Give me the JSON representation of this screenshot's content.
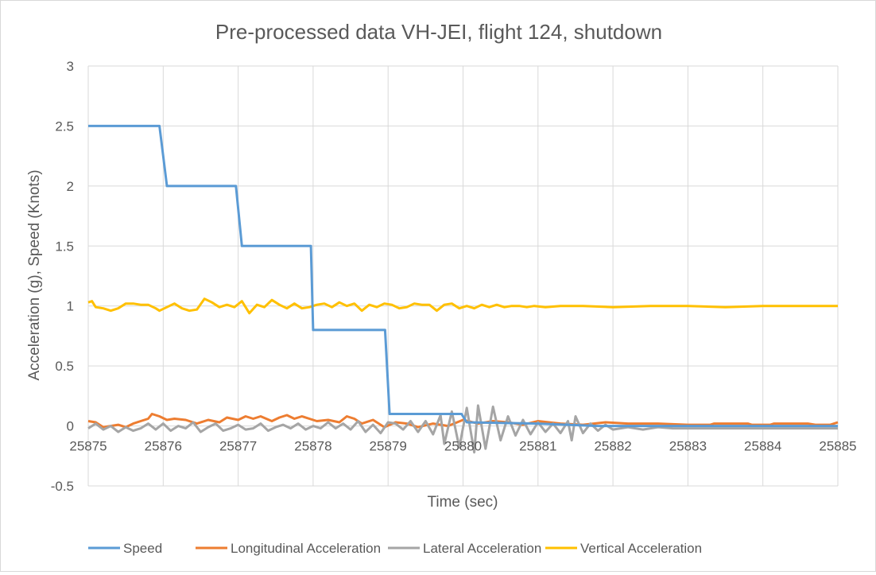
{
  "chart_data": {
    "type": "line",
    "title": "Pre-processed data VH-JEI, flight 124, shutdown",
    "xlabel": "Time (sec)",
    "ylabel": "Acceleration (g), Speed (Knots)",
    "xlim": [
      25875,
      25885
    ],
    "ylim": [
      -0.5,
      3
    ],
    "x_ticks": [
      "25875",
      "25876",
      "25877",
      "25878",
      "25879",
      "25880",
      "25881",
      "25882",
      "25883",
      "25884",
      "25885"
    ],
    "y_ticks": [
      "-0.5",
      "0",
      "0.5",
      "1",
      "1.5",
      "2",
      "2.5",
      "3"
    ],
    "grid": "vertical-and-horizontal",
    "legend_position": "bottom",
    "series": [
      {
        "name": "Speed",
        "color": "#5b9bd5",
        "points": [
          [
            25875,
            2.5
          ],
          [
            25875.95,
            2.5
          ],
          [
            25876.05,
            2.0
          ],
          [
            25876.97,
            2.0
          ],
          [
            25877.05,
            1.5
          ],
          [
            25877.97,
            1.5
          ],
          [
            25878.0,
            0.8
          ],
          [
            25878.96,
            0.8
          ],
          [
            25879.02,
            0.1
          ],
          [
            25879.9,
            0.1
          ],
          [
            25879.98,
            0.1
          ],
          [
            25880.05,
            0.03
          ],
          [
            25881.0,
            0.02
          ],
          [
            25881.8,
            0.0
          ],
          [
            25885,
            0.0
          ]
        ]
      },
      {
        "name": "Longitudinal Acceleration",
        "color": "#ed7d31",
        "points": [
          [
            25875.0,
            0.04
          ],
          [
            25875.1,
            0.03
          ],
          [
            25875.2,
            -0.01
          ],
          [
            25875.3,
            0.0
          ],
          [
            25875.4,
            0.01
          ],
          [
            25875.5,
            -0.01
          ],
          [
            25875.6,
            0.02
          ],
          [
            25875.7,
            0.04
          ],
          [
            25875.8,
            0.06
          ],
          [
            25875.85,
            0.1
          ],
          [
            25875.95,
            0.08
          ],
          [
            25876.05,
            0.05
          ],
          [
            25876.15,
            0.06
          ],
          [
            25876.3,
            0.05
          ],
          [
            25876.45,
            0.02
          ],
          [
            25876.6,
            0.05
          ],
          [
            25876.75,
            0.03
          ],
          [
            25876.85,
            0.07
          ],
          [
            25877.0,
            0.05
          ],
          [
            25877.1,
            0.08
          ],
          [
            25877.2,
            0.06
          ],
          [
            25877.3,
            0.08
          ],
          [
            25877.45,
            0.04
          ],
          [
            25877.55,
            0.07
          ],
          [
            25877.65,
            0.09
          ],
          [
            25877.75,
            0.06
          ],
          [
            25877.85,
            0.08
          ],
          [
            25877.95,
            0.06
          ],
          [
            25878.05,
            0.04
          ],
          [
            25878.2,
            0.05
          ],
          [
            25878.35,
            0.03
          ],
          [
            25878.45,
            0.08
          ],
          [
            25878.55,
            0.06
          ],
          [
            25878.65,
            0.02
          ],
          [
            25878.8,
            0.05
          ],
          [
            25878.95,
            -0.01
          ],
          [
            25879.1,
            0.03
          ],
          [
            25879.25,
            0.02
          ],
          [
            25879.4,
            -0.01
          ],
          [
            25879.6,
            0.02
          ],
          [
            25879.8,
            0.0
          ],
          [
            25880.0,
            0.05
          ],
          [
            25880.2,
            0.02
          ],
          [
            25880.4,
            0.04
          ],
          [
            25880.6,
            0.03
          ],
          [
            25880.8,
            0.01
          ],
          [
            25881.0,
            0.04
          ],
          [
            25881.3,
            0.02
          ],
          [
            25881.6,
            0.01
          ],
          [
            25881.9,
            0.03
          ],
          [
            25882.2,
            0.02
          ],
          [
            25882.6,
            0.02
          ],
          [
            25883.0,
            0.01
          ],
          [
            25883.3,
            0.01
          ],
          [
            25883.35,
            0.02
          ],
          [
            25883.8,
            0.02
          ],
          [
            25883.85,
            0.01
          ],
          [
            25884.1,
            0.01
          ],
          [
            25884.15,
            0.02
          ],
          [
            25884.6,
            0.02
          ],
          [
            25884.7,
            0.01
          ],
          [
            25884.9,
            0.01
          ],
          [
            25885.0,
            0.03
          ]
        ]
      },
      {
        "name": "Lateral Acceleration",
        "color": "#a5a5a5",
        "points": [
          [
            25875.0,
            -0.02
          ],
          [
            25875.1,
            0.02
          ],
          [
            25875.2,
            -0.03
          ],
          [
            25875.3,
            0.0
          ],
          [
            25875.4,
            -0.05
          ],
          [
            25875.5,
            -0.01
          ],
          [
            25875.6,
            -0.04
          ],
          [
            25875.7,
            -0.02
          ],
          [
            25875.8,
            0.02
          ],
          [
            25875.9,
            -0.03
          ],
          [
            25876.0,
            0.02
          ],
          [
            25876.1,
            -0.04
          ],
          [
            25876.2,
            0.0
          ],
          [
            25876.3,
            -0.02
          ],
          [
            25876.4,
            0.03
          ],
          [
            25876.5,
            -0.05
          ],
          [
            25876.6,
            -0.01
          ],
          [
            25876.7,
            0.02
          ],
          [
            25876.8,
            -0.04
          ],
          [
            25876.9,
            -0.02
          ],
          [
            25877.0,
            0.01
          ],
          [
            25877.1,
            -0.03
          ],
          [
            25877.2,
            -0.02
          ],
          [
            25877.3,
            0.02
          ],
          [
            25877.4,
            -0.04
          ],
          [
            25877.5,
            -0.01
          ],
          [
            25877.6,
            0.01
          ],
          [
            25877.7,
            -0.02
          ],
          [
            25877.8,
            0.02
          ],
          [
            25877.9,
            -0.03
          ],
          [
            25878.0,
            0.0
          ],
          [
            25878.1,
            -0.02
          ],
          [
            25878.2,
            0.03
          ],
          [
            25878.3,
            -0.02
          ],
          [
            25878.4,
            0.02
          ],
          [
            25878.5,
            -0.03
          ],
          [
            25878.6,
            0.04
          ],
          [
            25878.7,
            -0.05
          ],
          [
            25878.8,
            0.01
          ],
          [
            25878.9,
            -0.06
          ],
          [
            25879.0,
            0.03
          ],
          [
            25879.1,
            0.02
          ],
          [
            25879.2,
            -0.03
          ],
          [
            25879.3,
            0.04
          ],
          [
            25879.4,
            -0.05
          ],
          [
            25879.5,
            0.04
          ],
          [
            25879.6,
            -0.07
          ],
          [
            25879.7,
            0.09
          ],
          [
            25879.75,
            -0.15
          ],
          [
            25879.85,
            0.12
          ],
          [
            25879.95,
            -0.18
          ],
          [
            25880.05,
            0.15
          ],
          [
            25880.15,
            -0.22
          ],
          [
            25880.2,
            0.17
          ],
          [
            25880.3,
            -0.19
          ],
          [
            25880.4,
            0.16
          ],
          [
            25880.5,
            -0.12
          ],
          [
            25880.6,
            0.08
          ],
          [
            25880.7,
            -0.08
          ],
          [
            25880.8,
            0.05
          ],
          [
            25880.9,
            -0.07
          ],
          [
            25881.0,
            0.03
          ],
          [
            25881.1,
            -0.05
          ],
          [
            25881.2,
            0.02
          ],
          [
            25881.3,
            -0.06
          ],
          [
            25881.4,
            0.04
          ],
          [
            25881.45,
            -0.12
          ],
          [
            25881.5,
            0.08
          ],
          [
            25881.6,
            -0.06
          ],
          [
            25881.7,
            0.02
          ],
          [
            25881.8,
            -0.04
          ],
          [
            25881.9,
            0.01
          ],
          [
            25882.0,
            -0.03
          ],
          [
            25882.2,
            -0.01
          ],
          [
            25882.4,
            -0.03
          ],
          [
            25882.6,
            -0.01
          ],
          [
            25882.8,
            -0.02
          ],
          [
            25883.0,
            -0.02
          ],
          [
            25885.0,
            -0.02
          ]
        ]
      },
      {
        "name": "Vertical Acceleration",
        "color": "#ffc000",
        "points": [
          [
            25875.0,
            1.03
          ],
          [
            25875.05,
            1.04
          ],
          [
            25875.1,
            0.99
          ],
          [
            25875.2,
            0.98
          ],
          [
            25875.3,
            0.96
          ],
          [
            25875.4,
            0.98
          ],
          [
            25875.5,
            1.02
          ],
          [
            25875.6,
            1.02
          ],
          [
            25875.7,
            1.01
          ],
          [
            25875.8,
            1.01
          ],
          [
            25875.9,
            0.98
          ],
          [
            25875.95,
            0.96
          ],
          [
            25876.05,
            0.99
          ],
          [
            25876.15,
            1.02
          ],
          [
            25876.25,
            0.98
          ],
          [
            25876.35,
            0.96
          ],
          [
            25876.45,
            0.97
          ],
          [
            25876.55,
            1.06
          ],
          [
            25876.65,
            1.03
          ],
          [
            25876.75,
            0.99
          ],
          [
            25876.85,
            1.01
          ],
          [
            25876.95,
            0.99
          ],
          [
            25877.05,
            1.04
          ],
          [
            25877.15,
            0.94
          ],
          [
            25877.25,
            1.01
          ],
          [
            25877.35,
            0.99
          ],
          [
            25877.45,
            1.05
          ],
          [
            25877.55,
            1.01
          ],
          [
            25877.65,
            0.98
          ],
          [
            25877.75,
            1.02
          ],
          [
            25877.85,
            0.98
          ],
          [
            25877.95,
            0.99
          ],
          [
            25878.05,
            1.01
          ],
          [
            25878.15,
            1.02
          ],
          [
            25878.25,
            0.99
          ],
          [
            25878.35,
            1.03
          ],
          [
            25878.45,
            1.0
          ],
          [
            25878.55,
            1.02
          ],
          [
            25878.65,
            0.96
          ],
          [
            25878.75,
            1.01
          ],
          [
            25878.85,
            0.99
          ],
          [
            25878.95,
            1.02
          ],
          [
            25879.05,
            1.01
          ],
          [
            25879.15,
            0.98
          ],
          [
            25879.25,
            0.99
          ],
          [
            25879.35,
            1.02
          ],
          [
            25879.45,
            1.01
          ],
          [
            25879.55,
            1.01
          ],
          [
            25879.65,
            0.96
          ],
          [
            25879.75,
            1.01
          ],
          [
            25879.85,
            1.02
          ],
          [
            25879.95,
            0.98
          ],
          [
            25880.05,
            1.0
          ],
          [
            25880.15,
            0.98
          ],
          [
            25880.25,
            1.01
          ],
          [
            25880.35,
            0.99
          ],
          [
            25880.45,
            1.01
          ],
          [
            25880.55,
            0.99
          ],
          [
            25880.65,
            1.0
          ],
          [
            25880.75,
            1.0
          ],
          [
            25880.85,
            0.99
          ],
          [
            25880.95,
            1.0
          ],
          [
            25881.1,
            0.99
          ],
          [
            25881.3,
            1.0
          ],
          [
            25881.6,
            1.0
          ],
          [
            25882.0,
            0.99
          ],
          [
            25882.5,
            1.0
          ],
          [
            25883.0,
            1.0
          ],
          [
            25883.5,
            0.99
          ],
          [
            25884.0,
            1.0
          ],
          [
            25884.5,
            1.0
          ],
          [
            25885.0,
            1.0
          ]
        ]
      }
    ]
  }
}
